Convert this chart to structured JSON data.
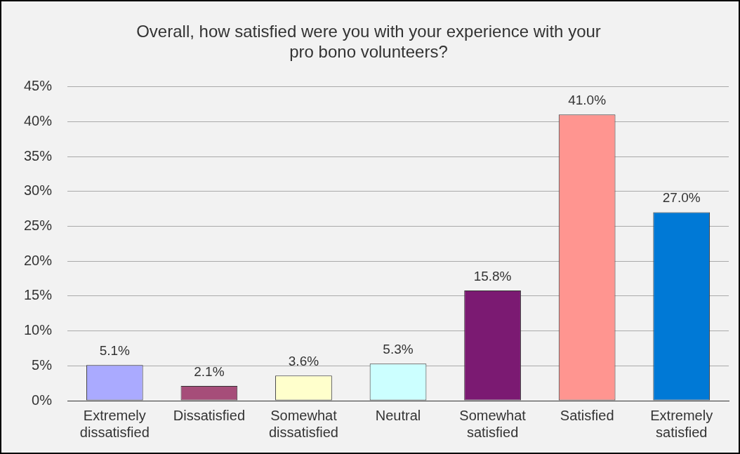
{
  "chart_data": {
    "type": "bar",
    "title": "Overall, how satisfied were you with your experience with your pro bono volunteers?",
    "categories": [
      "Extremely dissatisfied",
      "Dissatisfied",
      "Somewhat dissatisfied",
      "Neutral",
      "Somewhat satisfied",
      "Satisfied",
      "Extremely satisfied"
    ],
    "values": [
      5.1,
      2.1,
      3.6,
      5.3,
      15.8,
      41.0,
      27.0
    ],
    "colors": [
      "#aaaaff",
      "#a64d79",
      "#ffffcc",
      "#ccffff",
      "#7b1a72",
      "#ff9590",
      "#0079d6"
    ],
    "value_labels": [
      "5.1%",
      "2.1%",
      "3.6%",
      "5.3%",
      "15.8%",
      "41.0%",
      "27.0%"
    ],
    "ylim": [
      0,
      45
    ],
    "yticks": [
      {
        "value": 0,
        "label": "0%"
      },
      {
        "value": 5,
        "label": "5%"
      },
      {
        "value": 10,
        "label": "10%"
      },
      {
        "value": 15,
        "label": "15%"
      },
      {
        "value": 20,
        "label": "20%"
      },
      {
        "value": 25,
        "label": "25%"
      },
      {
        "value": 30,
        "label": "30%"
      },
      {
        "value": 35,
        "label": "35%"
      },
      {
        "value": 40,
        "label": "40%"
      },
      {
        "value": 45,
        "label": "45%"
      }
    ],
    "grid": "y",
    "legend": false
  }
}
